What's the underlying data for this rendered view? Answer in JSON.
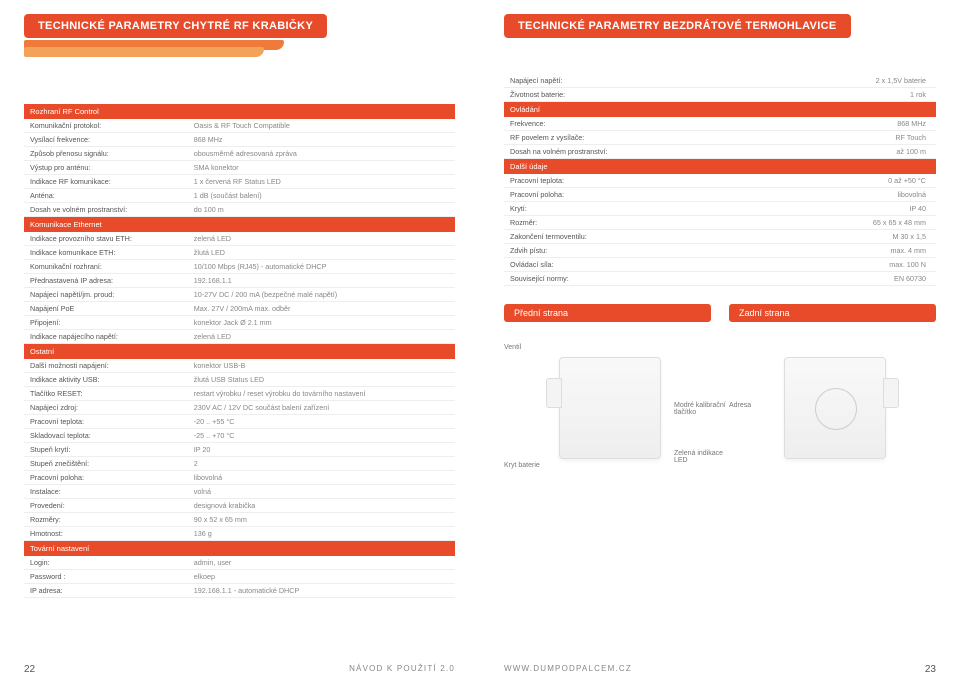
{
  "colors": {
    "accent": "#e84b2a",
    "tab2": "#f07a3a",
    "tab3": "#f4a25a",
    "text": "#555555",
    "muted": "#888888",
    "rule": "#eeeeee"
  },
  "left": {
    "title": "TECHNICKÉ PARAMETRY CHYTRÉ RF KRABIČKY",
    "page_num": "22",
    "footer": "NÁVOD K POUŽITÍ 2.0",
    "sections": [
      {
        "type": "section",
        "label": "Rozhraní RF Control"
      },
      {
        "label": "Komunikační protokol:",
        "val": "Oasis & RF Touch Compatible"
      },
      {
        "label": "Vysílací frekvence:",
        "val": "868 MHz"
      },
      {
        "label": "Způsob přenosu signálu:",
        "val": "obousměrně adresovaná zpráva"
      },
      {
        "label": "Výstup pro anténu:",
        "val": "SMA konektor"
      },
      {
        "label": "Indikace RF komunikace:",
        "val": "1 x červená RF Status LED"
      },
      {
        "label": "Anténa:",
        "val": "1 dB (součást balení)"
      },
      {
        "label": "Dosah ve volném prostranství:",
        "val": "do 100 m"
      },
      {
        "type": "section",
        "label": "Komunikace Ethernet"
      },
      {
        "label": "Indikace provozního stavu ETH:",
        "val": "zelená LED"
      },
      {
        "label": "Indikace komunikace ETH:",
        "val": "žlutá LED"
      },
      {
        "label": "Komunikační rozhraní:",
        "val": "10/100 Mbps (RJ45) - automatické DHCP"
      },
      {
        "label": "Přednastavená IP adresa:",
        "val": "192.168.1.1"
      },
      {
        "label": "Napájecí napětí/jm. proud:",
        "val": "10-27V DC / 200 mA (bezpečné malé napětí)"
      },
      {
        "label": "Napájení PoE",
        "val": "Max. 27V / 200mA max. odběr"
      },
      {
        "label": "Připojení:",
        "val": "konektor Jack  Ø 2.1 mm"
      },
      {
        "label": "Indikace napájecího napětí:",
        "val": "zelená LED"
      },
      {
        "type": "section",
        "label": "Ostatní"
      },
      {
        "label": "Další možnosti napájení:",
        "val": "konektor USB-B"
      },
      {
        "label": "Indikace aktivity USB:",
        "val": "žlutá USB Status LED"
      },
      {
        "label": "Tlačítko RESET:",
        "val": "restart výrobku / reset výrobku do továrního nastavení"
      },
      {
        "label": "Napájecí zdroj:",
        "val": "230V AC / 12V DC součást balení zařízení"
      },
      {
        "label": "Pracovní teplota:",
        "val": "-20 .. +55 °C"
      },
      {
        "label": "Skladovací teplota:",
        "val": "-25 .. +70 °C"
      },
      {
        "label": "Stupeň krytí:",
        "val": "IP 20"
      },
      {
        "label": "Stupeň znečištění:",
        "val": "2"
      },
      {
        "label": "Pracovní poloha:",
        "val": "libovolná"
      },
      {
        "label": "Instalace:",
        "val": "volná"
      },
      {
        "label": "Provedení:",
        "val": "designová krabička"
      },
      {
        "label": "Rozměry:",
        "val": "90 x 52 x 65 mm"
      },
      {
        "label": "Hmotnost:",
        "val": "136 g"
      },
      {
        "type": "section",
        "label": "Tovární nastavení"
      },
      {
        "label": "Login:",
        "val": "admin, user"
      },
      {
        "label": "Password :",
        "val": "elkoep"
      },
      {
        "label": "IP adresa:",
        "val": "192.168.1.1 - automatické DHCP"
      }
    ]
  },
  "right": {
    "title": "TECHNICKÉ PARAMETRY BEZDRÁTOVÉ TERMOHLAVICE",
    "page_num": "23",
    "footer": "WWW.DUMPODPALCEM.CZ",
    "front_header": "Přední strana",
    "back_header": "Zadní strana",
    "callouts": {
      "ventil": "Ventil",
      "kryt": "Kryt baterie",
      "modre": "Modré kalibrační tlačítko",
      "zelena": "Zelená indikace LED",
      "adresa": "Adresa"
    },
    "sections": [
      {
        "label": "Napájecí napětí:",
        "val": "2 x 1,5V baterie"
      },
      {
        "label": "Životnost baterie:",
        "val": "1 rok"
      },
      {
        "type": "section",
        "label": "Ovládání"
      },
      {
        "label": "Frekvence:",
        "val": "868 MHz"
      },
      {
        "label": "RF povelem z vysílače:",
        "val": "RF Touch"
      },
      {
        "label": "Dosah na volném prostranství:",
        "val": "až 100 m"
      },
      {
        "type": "section",
        "label": "Další údaje"
      },
      {
        "label": "Pracovní teplota:",
        "val": "0 až +50 °C"
      },
      {
        "label": "Pracovní poloha:",
        "val": "libovolná"
      },
      {
        "label": "Krytí:",
        "val": "IP 40"
      },
      {
        "label": "Rozměr:",
        "val": "65 x 65 x 48 mm"
      },
      {
        "label": "Zakončení termoventilu:",
        "val": "M 30 x 1,5"
      },
      {
        "label": "Zdvih pístu:",
        "val": "max. 4 mm"
      },
      {
        "label": "Ovládací síla:",
        "val": "max. 100 N"
      },
      {
        "label": "Související normy:",
        "val": "EN 60730"
      }
    ]
  }
}
